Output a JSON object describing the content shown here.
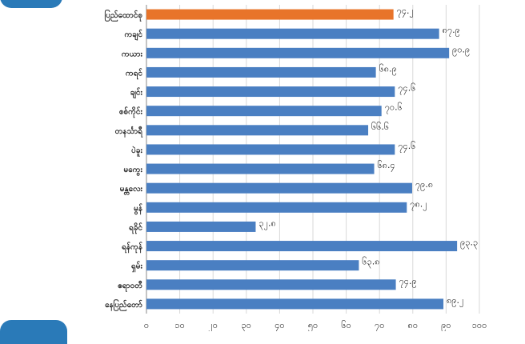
{
  "chart_data": {
    "type": "bar",
    "orientation": "horizontal",
    "categories": [
      "ပြည်ထောင်စု",
      "ကချင်",
      "ကယား",
      "ကရင်",
      "ချင်း",
      "စစ်ကိုင်း",
      "တနင်္သာရီ",
      "ပဲခူး",
      "မကွေး",
      "မန္တလေး",
      "မွန်",
      "ရခိုင်",
      "ရန်ကုန်",
      "ရှမ်း",
      "ဧရာဝတီ",
      "နေပြည်တော်"
    ],
    "values": [
      74.2,
      87.9,
      90.9,
      68.9,
      74.6,
      70.6,
      66.6,
      74.6,
      68.4,
      79.8,
      78.2,
      32.8,
      93.3,
      63.8,
      74.9,
      89.2
    ],
    "value_labels": [
      "၇၄.၂",
      "၈၇.၉",
      "၉၀.၉",
      "၆၈.၉",
      "၇၄.၆",
      "၇၀.၆",
      "၆၆.၆",
      "၇၄.၆",
      "၆၈.၄",
      "၇၉.၈",
      "၇၈.၂",
      "၃၂.၈",
      "၉၃.၃",
      "၆၃.၈",
      "၇၄.၉",
      "၈၉.၂"
    ],
    "xlim": [
      0,
      100
    ],
    "ticks": [
      "၀",
      "၁၀",
      "၂၀",
      "၃၀",
      "၄၀",
      "၅၀",
      "၆၀",
      "၇၀",
      "၈၀",
      "၉၀",
      "၁၀၀"
    ],
    "grid": true,
    "colors": {
      "highlight": "#e8742a",
      "bar": "#4a7fc2",
      "grid": "#d9d9d9",
      "tab": "#2a7ab8"
    },
    "highlight_index": 0
  }
}
